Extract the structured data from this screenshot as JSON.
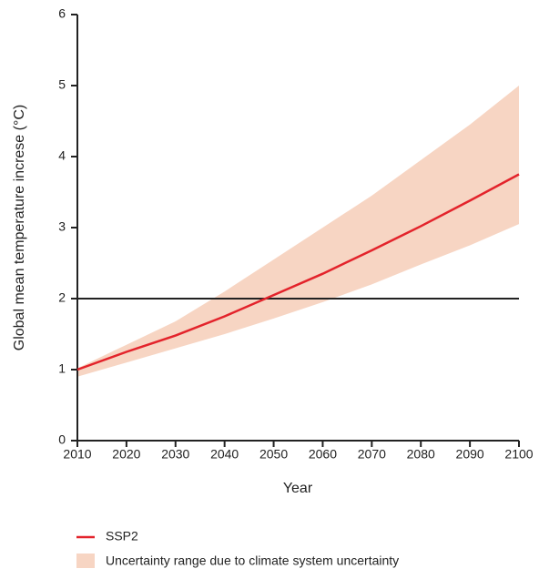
{
  "chart_data": {
    "type": "line",
    "x_label": "Year",
    "y_label": "Global mean temperature increse (°C)",
    "x": [
      2010,
      2020,
      2030,
      2040,
      2050,
      2060,
      2070,
      2080,
      2090,
      2100
    ],
    "series": [
      {
        "name": "SSP2",
        "color": "#e3232b",
        "values": [
          1.0,
          1.25,
          1.48,
          1.75,
          2.05,
          2.35,
          2.68,
          3.02,
          3.38,
          3.75
        ]
      }
    ],
    "band": {
      "name": "Uncertainty range due to climate system uncertainty",
      "color": "#f7d5c3",
      "upper": [
        1.02,
        1.35,
        1.68,
        2.1,
        2.55,
        3.0,
        3.45,
        3.95,
        4.45,
        5.0
      ],
      "lower": [
        0.9,
        1.1,
        1.3,
        1.5,
        1.72,
        1.95,
        2.2,
        2.48,
        2.75,
        3.05
      ]
    },
    "reference_line": 2,
    "xlim": [
      2010,
      2100
    ],
    "xticks": [
      2010,
      2020,
      2030,
      2040,
      2050,
      2060,
      2070,
      2080,
      2090,
      2100
    ],
    "ylim": [
      0,
      6
    ],
    "yticks": [
      0,
      1,
      2,
      3,
      4,
      5,
      6
    ],
    "grid": false
  }
}
